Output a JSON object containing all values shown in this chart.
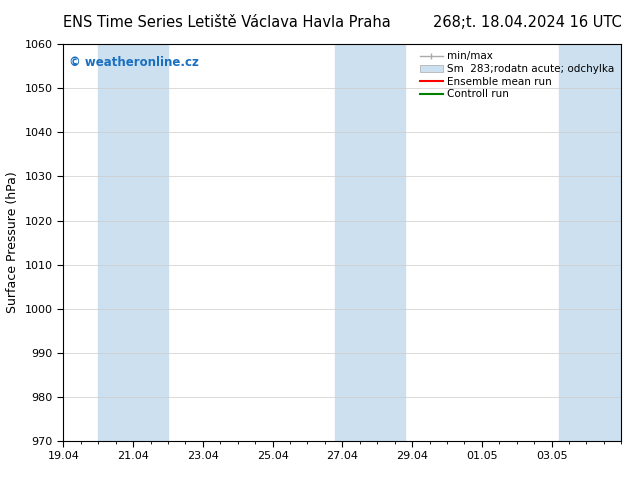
{
  "title_left": "ENS Time Series Letiště Václava Havla Praha",
  "title_right": "268;t. 18.04.2024 16 UTC",
  "ylabel": "Surface Pressure (hPa)",
  "ylim": [
    970,
    1060
  ],
  "yticks": [
    970,
    980,
    990,
    1000,
    1010,
    1020,
    1030,
    1040,
    1050,
    1060
  ],
  "xtick_labels": [
    "19.04",
    "21.04",
    "23.04",
    "25.04",
    "27.04",
    "29.04",
    "01.05",
    "03.05"
  ],
  "xtick_positions": [
    0,
    2,
    4,
    6,
    8,
    10,
    12,
    14
  ],
  "watermark": "© weatheronline.cz",
  "watermark_color": "#1a6fbf",
  "shaded_bands": [
    {
      "x_start": 1.0,
      "x_end": 3.0
    },
    {
      "x_start": 7.8,
      "x_end": 9.8
    },
    {
      "x_start": 14.2,
      "x_end": 16.0
    }
  ],
  "shade_color": "#cce0f0",
  "legend_labels": [
    "min/max",
    "Sm  283;rodatn acute; odchylka",
    "Ensemble mean run",
    "Controll run"
  ],
  "bg_color": "#ffffff",
  "spine_color": "#000000",
  "grid_color": "#cccccc",
  "xmin": 0,
  "xmax": 16,
  "title_fontsize": 10.5,
  "tick_fontsize": 8,
  "ylabel_fontsize": 9
}
